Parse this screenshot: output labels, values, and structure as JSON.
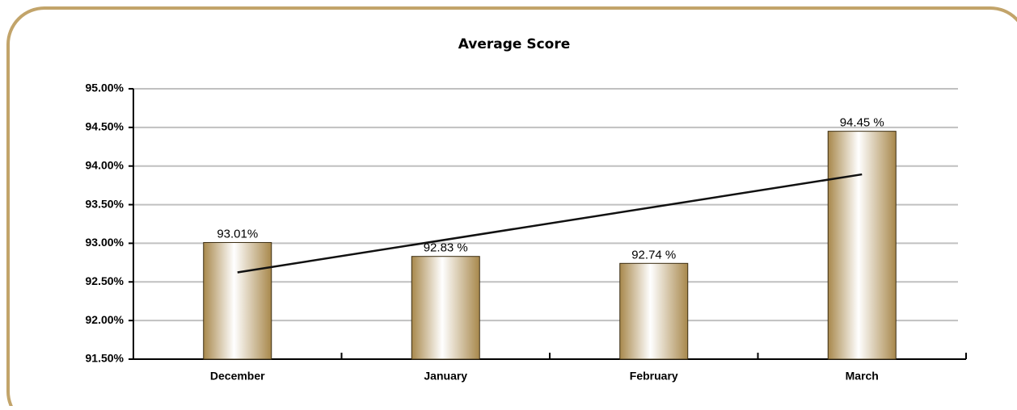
{
  "chart_data": {
    "type": "bar",
    "title": "Average Score",
    "categories": [
      "December",
      "January",
      "February",
      "March"
    ],
    "values": [
      93.01,
      92.83,
      92.74,
      94.45
    ],
    "value_labels": [
      "93.01%",
      "92.83 %",
      "92.74 %",
      "94.45 %"
    ],
    "color": "#b89a5e",
    "trendline": true,
    "ylim": [
      91.5,
      95
    ],
    "yticks": [
      {
        "value": 91.5,
        "label": "91.50%"
      },
      {
        "value": 92,
        "label": "92.00%"
      },
      {
        "value": 92.5,
        "label": "92.50%"
      },
      {
        "value": 93,
        "label": "93.00%"
      },
      {
        "value": 93.5,
        "label": "93.50%"
      },
      {
        "value": 94,
        "label": "94.00%"
      },
      {
        "value": 94.5,
        "label": "94.50%"
      },
      {
        "value": 95,
        "label": "95.00%"
      }
    ],
    "grid": true
  }
}
